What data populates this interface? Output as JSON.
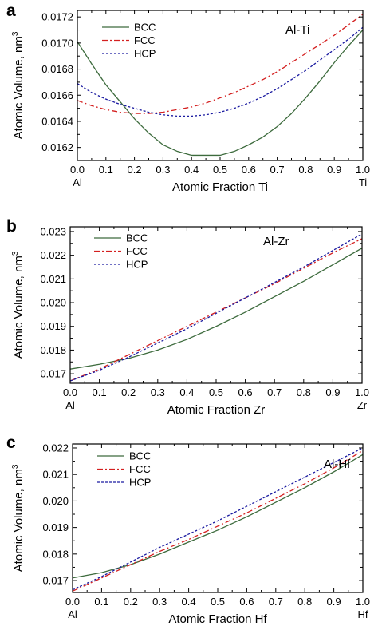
{
  "chart_data": [
    {
      "type": "line",
      "panel": "a",
      "system_label": "Al-Ti",
      "xlabel": "Atomic Fraction Ti",
      "ylabel": "Atomic Volume, nm",
      "ylabel_sup": "3",
      "x_end_labels": [
        "Al",
        "Ti"
      ],
      "xlim": [
        0,
        1
      ],
      "ylim": [
        0.0161,
        0.01725
      ],
      "xticks": [
        0.0,
        0.1,
        0.2,
        0.3,
        0.4,
        0.5,
        0.6,
        0.7,
        0.8,
        0.9,
        1.0
      ],
      "xtick_labels": [
        "0.0",
        "0.1",
        "0.2",
        "0.3",
        "0.4",
        "0.5",
        "0.6",
        "0.7",
        "0.8",
        "0.9",
        "1.0"
      ],
      "yticks": [
        0.0162,
        0.0164,
        0.0166,
        0.0168,
        0.017,
        0.0172
      ],
      "ytick_labels": [
        "0.0162",
        "0.0164",
        "0.0166",
        "0.0168",
        "0.0170",
        "0.0172"
      ],
      "legend_position": "top-left",
      "grid": false,
      "series": [
        {
          "name": "BCC",
          "color": "#3d6b3d",
          "dash": "solid",
          "x": [
            0,
            0.05,
            0.1,
            0.15,
            0.2,
            0.25,
            0.3,
            0.35,
            0.4,
            0.45,
            0.5,
            0.55,
            0.6,
            0.65,
            0.7,
            0.75,
            0.8,
            0.85,
            0.9,
            0.95,
            1.0
          ],
          "y": [
            0.01701,
            0.01684,
            0.01668,
            0.01655,
            0.01642,
            0.01631,
            0.01622,
            0.01617,
            0.01614,
            0.01614,
            0.01614,
            0.01617,
            0.01622,
            0.01628,
            0.01636,
            0.01646,
            0.01658,
            0.01671,
            0.01685,
            0.01698,
            0.0171
          ]
        },
        {
          "name": "FCC",
          "color": "#d42020",
          "dash": "dashdot",
          "x": [
            0,
            0.05,
            0.1,
            0.15,
            0.2,
            0.25,
            0.3,
            0.35,
            0.4,
            0.45,
            0.5,
            0.55,
            0.6,
            0.65,
            0.7,
            0.75,
            0.8,
            0.85,
            0.9,
            0.95,
            1.0
          ],
          "y": [
            0.01656,
            0.01652,
            0.01649,
            0.01647,
            0.01646,
            0.01646,
            0.01647,
            0.01649,
            0.01651,
            0.01654,
            0.01658,
            0.01662,
            0.01667,
            0.01672,
            0.01678,
            0.01685,
            0.01692,
            0.01699,
            0.01706,
            0.01714,
            0.01722
          ]
        },
        {
          "name": "HCP",
          "color": "#1a1aa0",
          "dash": "dotted",
          "x": [
            0,
            0.05,
            0.1,
            0.15,
            0.2,
            0.25,
            0.3,
            0.35,
            0.4,
            0.45,
            0.5,
            0.55,
            0.6,
            0.65,
            0.7,
            0.75,
            0.8,
            0.85,
            0.9,
            0.95,
            1.0
          ],
          "y": [
            0.01669,
            0.01662,
            0.01657,
            0.01653,
            0.0165,
            0.01647,
            0.01645,
            0.01644,
            0.01644,
            0.01645,
            0.01647,
            0.0165,
            0.01654,
            0.01659,
            0.01665,
            0.01672,
            0.01679,
            0.01687,
            0.01695,
            0.01703,
            0.01712
          ]
        }
      ]
    },
    {
      "type": "line",
      "panel": "b",
      "system_label": "Al-Zr",
      "xlabel": "Atomic Fraction Zr",
      "ylabel": "Atomic Volume, nm",
      "ylabel_sup": "3",
      "x_end_labels": [
        "Al",
        "Zr"
      ],
      "xlim": [
        0,
        1
      ],
      "ylim": [
        0.0166,
        0.0232
      ],
      "xticks": [
        0.0,
        0.1,
        0.2,
        0.3,
        0.4,
        0.5,
        0.6,
        0.7,
        0.8,
        0.9,
        1.0
      ],
      "xtick_labels": [
        "0.0",
        "0.1",
        "0.2",
        "0.3",
        "0.4",
        "0.5",
        "0.6",
        "0.7",
        "0.8",
        "0.9",
        "1.0"
      ],
      "yticks": [
        0.017,
        0.018,
        0.019,
        0.02,
        0.021,
        0.022,
        0.023
      ],
      "ytick_labels": [
        "0.017",
        "0.018",
        "0.019",
        "0.020",
        "0.021",
        "0.022",
        "0.023"
      ],
      "legend_position": "top-left",
      "grid": false,
      "series": [
        {
          "name": "BCC",
          "color": "#3d6b3d",
          "dash": "solid",
          "x": [
            0,
            0.1,
            0.2,
            0.3,
            0.4,
            0.5,
            0.6,
            0.7,
            0.8,
            0.9,
            1.0
          ],
          "y": [
            0.0172,
            0.0174,
            0.01765,
            0.018,
            0.01845,
            0.019,
            0.0196,
            0.02025,
            0.0209,
            0.0216,
            0.0223
          ]
        },
        {
          "name": "FCC",
          "color": "#d42020",
          "dash": "dashdot",
          "x": [
            0,
            0.1,
            0.2,
            0.3,
            0.4,
            0.5,
            0.6,
            0.7,
            0.8,
            0.9,
            1.0
          ],
          "y": [
            0.0167,
            0.0172,
            0.0178,
            0.0184,
            0.019,
            0.0196,
            0.0202,
            0.0208,
            0.02145,
            0.0221,
            0.0227
          ]
        },
        {
          "name": "HCP",
          "color": "#1a1aa0",
          "dash": "dotted",
          "x": [
            0,
            0.1,
            0.2,
            0.3,
            0.4,
            0.5,
            0.6,
            0.7,
            0.8,
            0.9,
            1.0
          ],
          "y": [
            0.0167,
            0.01715,
            0.0177,
            0.0183,
            0.0189,
            0.01955,
            0.0202,
            0.02085,
            0.0215,
            0.0222,
            0.0229
          ]
        }
      ]
    },
    {
      "type": "line",
      "panel": "c",
      "system_label": "Al-Hf",
      "xlabel": "Atomic Fraction Hf",
      "ylabel": "Atomic Volume, nm",
      "ylabel_sup": "3",
      "x_end_labels": [
        "Al",
        "Hf"
      ],
      "xlim": [
        0,
        1
      ],
      "ylim": [
        0.01655,
        0.02215
      ],
      "xticks": [
        0.0,
        0.1,
        0.2,
        0.3,
        0.4,
        0.5,
        0.6,
        0.7,
        0.8,
        0.9,
        1.0
      ],
      "xtick_labels": [
        "0.0",
        "0.1",
        "0.2",
        "0.3",
        "0.4",
        "0.5",
        "0.6",
        "0.7",
        "0.8",
        "0.9",
        "1.0"
      ],
      "yticks": [
        0.017,
        0.018,
        0.019,
        0.02,
        0.021,
        0.022
      ],
      "ytick_labels": [
        "0.017",
        "0.018",
        "0.019",
        "0.020",
        "0.021",
        "0.022"
      ],
      "legend_position": "top-left",
      "grid": false,
      "series": [
        {
          "name": "BCC",
          "color": "#3d6b3d",
          "dash": "solid",
          "x": [
            0,
            0.1,
            0.2,
            0.3,
            0.4,
            0.5,
            0.6,
            0.7,
            0.8,
            0.9,
            1.0
          ],
          "y": [
            0.0171,
            0.0173,
            0.0176,
            0.018,
            0.01845,
            0.0189,
            0.0194,
            0.01995,
            0.0205,
            0.0211,
            0.02175
          ]
        },
        {
          "name": "FCC",
          "color": "#d42020",
          "dash": "dashdot",
          "x": [
            0,
            0.1,
            0.2,
            0.3,
            0.4,
            0.5,
            0.6,
            0.7,
            0.8,
            0.9,
            1.0
          ],
          "y": [
            0.0166,
            0.0171,
            0.0176,
            0.0181,
            0.01855,
            0.01905,
            0.01955,
            0.0201,
            0.02065,
            0.02125,
            0.0219
          ]
        },
        {
          "name": "HCP",
          "color": "#1a1aa0",
          "dash": "dotted",
          "x": [
            0,
            0.1,
            0.2,
            0.3,
            0.4,
            0.5,
            0.6,
            0.7,
            0.8,
            0.9,
            1.0
          ],
          "y": [
            0.01665,
            0.01715,
            0.0177,
            0.01825,
            0.01875,
            0.01925,
            0.0198,
            0.02035,
            0.0209,
            0.02145,
            0.022
          ]
        }
      ]
    }
  ]
}
